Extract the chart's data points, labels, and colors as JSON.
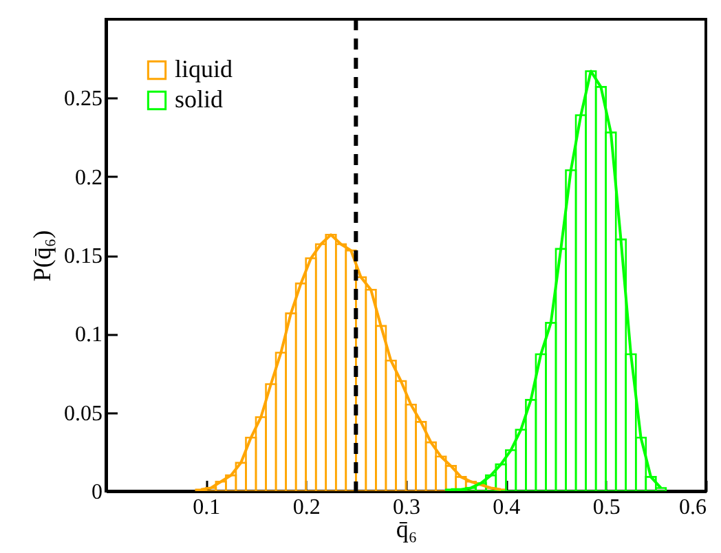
{
  "chart_data": {
    "type": "histogram",
    "xlabel": "q̄₆",
    "ylabel": "P(q̄₆)",
    "bins": [
      0.09,
      0.1,
      0.11,
      0.12,
      0.13,
      0.14,
      0.15,
      0.16,
      0.17,
      0.18,
      0.19,
      0.2,
      0.21,
      0.22,
      0.23,
      0.24,
      0.25,
      0.26,
      0.27,
      0.28,
      0.29,
      0.3,
      0.31,
      0.32,
      0.33,
      0.34,
      0.35,
      0.36,
      0.37,
      0.38,
      0.39,
      0.4,
      0.41,
      0.42,
      0.43,
      0.44,
      0.45,
      0.46,
      0.47,
      0.48,
      0.49,
      0.5,
      0.51,
      0.52,
      0.53,
      0.54,
      0.55,
      0.56
    ],
    "series": [
      {
        "name": "liquid",
        "color": "#ffa500",
        "values": [
          0.001,
          0.002,
          0.006,
          0.01,
          0.018,
          0.034,
          0.047,
          0.068,
          0.088,
          0.113,
          0.132,
          0.148,
          0.157,
          0.163,
          0.157,
          0.153,
          0.136,
          0.128,
          0.105,
          0.083,
          0.07,
          0.055,
          0.044,
          0.031,
          0.022,
          0.016,
          0.009,
          0.006,
          0.004,
          0.002,
          0.001,
          null,
          null,
          null,
          null,
          null,
          null,
          null,
          null,
          null,
          null,
          null,
          null,
          null,
          null,
          null,
          null
        ]
      },
      {
        "name": "solid",
        "color": "#00ff00",
        "values": [
          null,
          null,
          null,
          null,
          null,
          null,
          null,
          null,
          null,
          null,
          null,
          null,
          null,
          null,
          null,
          null,
          null,
          null,
          null,
          null,
          null,
          null,
          null,
          null,
          null,
          0.001,
          0.001,
          0.002,
          0.005,
          0.01,
          0.017,
          0.026,
          0.039,
          0.058,
          0.087,
          0.107,
          0.154,
          0.204,
          0.239,
          0.267,
          0.257,
          0.228,
          0.16,
          0.087,
          0.034,
          0.009,
          0.002
        ]
      },
      {
        "type": "line",
        "color": "#ffa500",
        "x": [
          0.095,
          0.105,
          0.115,
          0.125,
          0.135,
          0.145,
          0.155,
          0.165,
          0.175,
          0.185,
          0.195,
          0.205,
          0.215,
          0.225,
          0.235,
          0.245,
          0.255,
          0.265,
          0.275,
          0.285,
          0.295,
          0.305,
          0.315,
          0.325,
          0.335,
          0.345,
          0.355,
          0.365,
          0.375,
          0.385,
          0.395
        ],
        "values": [
          0.001,
          0.002,
          0.006,
          0.01,
          0.018,
          0.034,
          0.047,
          0.068,
          0.088,
          0.113,
          0.132,
          0.148,
          0.157,
          0.163,
          0.157,
          0.153,
          0.136,
          0.128,
          0.105,
          0.083,
          0.07,
          0.055,
          0.044,
          0.031,
          0.022,
          0.016,
          0.009,
          0.006,
          0.004,
          0.002,
          0.001
        ]
      },
      {
        "type": "line",
        "color": "#00ff00",
        "x": [
          0.345,
          0.355,
          0.365,
          0.375,
          0.385,
          0.395,
          0.405,
          0.415,
          0.425,
          0.435,
          0.445,
          0.455,
          0.465,
          0.475,
          0.485,
          0.495,
          0.505,
          0.515,
          0.525,
          0.535,
          0.545,
          0.555
        ],
        "values": [
          0.001,
          0.001,
          0.002,
          0.005,
          0.01,
          0.017,
          0.026,
          0.039,
          0.058,
          0.087,
          0.107,
          0.154,
          0.204,
          0.239,
          0.267,
          0.257,
          0.228,
          0.16,
          0.087,
          0.034,
          0.009,
          0.002
        ]
      }
    ],
    "xlim": [
      0,
      0.6
    ],
    "ylim": [
      0,
      0.3
    ],
    "xticks": [
      0.1,
      0.2,
      0.3,
      0.4,
      0.5,
      0.6
    ],
    "yticks": [
      0,
      0.05,
      0.1,
      0.15,
      0.2,
      0.25
    ],
    "ref_lines": [
      {
        "axis": "x",
        "value": 0.25,
        "color": "#000000",
        "line_style": "dashed"
      }
    ],
    "legend": "top left",
    "grid": false
  }
}
